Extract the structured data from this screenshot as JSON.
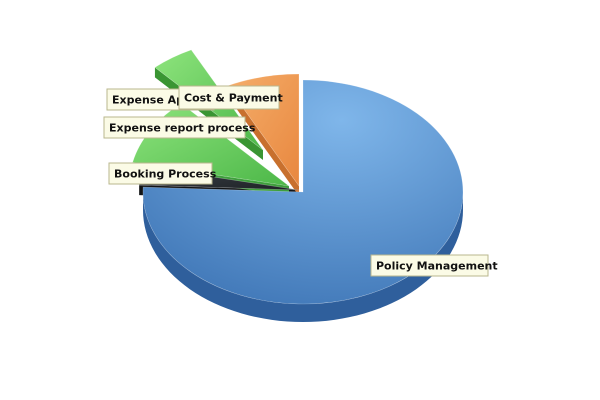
{
  "chart_data": {
    "type": "pie",
    "style": "3d-exploded",
    "legend": "none",
    "slices": [
      {
        "label": "Policy Management",
        "value": 75.7,
        "color": "#4d88c8"
      },
      {
        "label": "Booking Process",
        "value": 2.7,
        "color": "#2b2f34"
      },
      {
        "label": "Expense report process",
        "value": 9.8,
        "color": "#6dd46a"
      },
      {
        "label": "Expense Approval",
        "value": 4.4,
        "color": "#5cc44e"
      },
      {
        "label": "Cost & Payment",
        "value": 7.4,
        "color": "#ee9650"
      }
    ]
  }
}
